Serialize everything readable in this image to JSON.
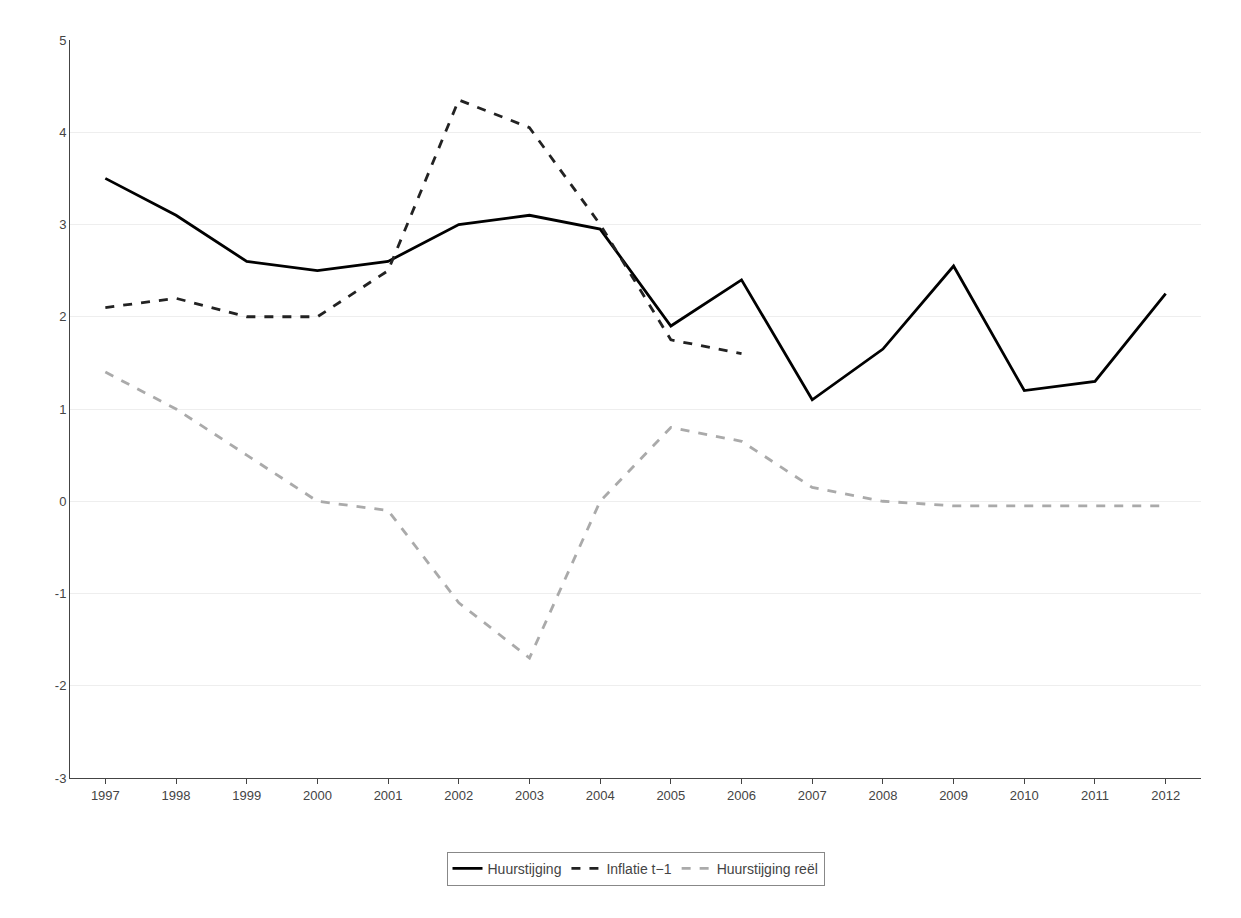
{
  "chart_data": {
    "type": "line",
    "x": [
      1997,
      1998,
      1999,
      2000,
      2001,
      2002,
      2003,
      2004,
      2005,
      2006,
      2007,
      2008,
      2009,
      2010,
      2011,
      2012
    ],
    "series": [
      {
        "name": "Huurstijging",
        "color": "#000000",
        "line_style": "solid",
        "values": [
          3.5,
          3.1,
          2.6,
          2.5,
          2.6,
          3.0,
          3.1,
          2.95,
          1.9,
          2.4,
          1.1,
          1.65,
          2.55,
          1.2,
          1.3,
          2.25
        ]
      },
      {
        "name": "Inflatie t−1",
        "color": "#222222",
        "line_style": "dashed",
        "values": [
          2.1,
          2.2,
          2.0,
          2.0,
          2.5,
          4.35,
          4.05,
          3.0,
          1.75,
          1.6,
          null,
          null,
          null,
          null,
          null,
          null
        ]
      },
      {
        "name": "Huurstijging reël",
        "color": "#aaaaaa",
        "line_style": "dashed",
        "values": [
          1.4,
          1.0,
          0.5,
          0.0,
          -0.1,
          -1.1,
          -1.7,
          0.0,
          0.8,
          0.65,
          0.15,
          0.0,
          -0.05,
          -0.05,
          -0.05,
          -0.05
        ]
      }
    ],
    "xlim": [
      1996.5,
      2012.5
    ],
    "xticks": [
      1997,
      1998,
      1999,
      2000,
      2001,
      2002,
      2003,
      2004,
      2005,
      2006,
      2007,
      2008,
      2009,
      2010,
      2011,
      2012
    ],
    "ylim": [
      -3,
      5
    ],
    "yticks": [
      -3,
      -2,
      -1,
      0,
      1,
      2,
      3,
      4,
      5
    ],
    "grid": true,
    "legend": "bottom"
  }
}
